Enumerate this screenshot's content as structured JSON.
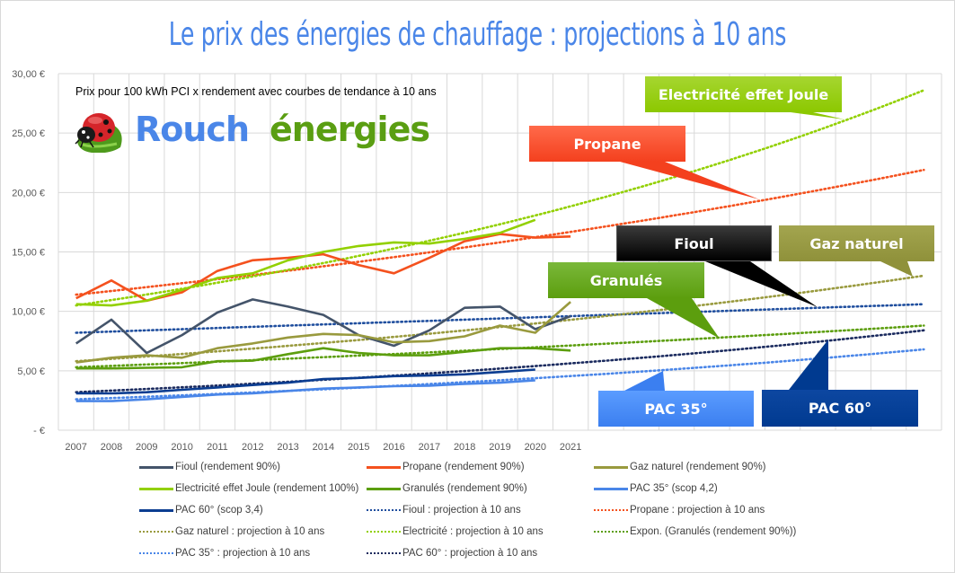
{
  "title": "Le prix des énergies de chauffage : projections à 10 ans",
  "subtitle": "Prix pour 100 kWh PCI x rendement avec courbes de tendance à 10 ans",
  "logo": {
    "word1": "Rouch",
    "word2": "énergies",
    "icon": "ladybug-icon"
  },
  "callouts": {
    "electricite": "Electricité effet Joule",
    "propane": "Propane",
    "fioul": "Fioul",
    "gaz": "Gaz naturel",
    "granules": "Granulés",
    "pac35": "PAC 35°",
    "pac60": "PAC 60°"
  },
  "chart_data": {
    "type": "line",
    "title": "Le prix des énergies de chauffage : projections à 10 ans",
    "subtitle": "Prix pour 100 kWh PCI x rendement avec courbes de tendance à 10 ans",
    "xlabel": "",
    "ylabel": "",
    "ylim": [
      0,
      30
    ],
    "y_ticks": [
      "-   €",
      "5,00 €",
      "10,00 €",
      "15,00 €",
      "20,00 €",
      "25,00 €",
      "30,00 €"
    ],
    "y_tick_values": [
      0,
      5,
      10,
      15,
      20,
      25,
      30
    ],
    "categories": [
      "2007",
      "2008",
      "2009",
      "2010",
      "2011",
      "2012",
      "2013",
      "2014",
      "2015",
      "2016",
      "2017",
      "2018",
      "2019",
      "2020",
      "2021"
    ],
    "x_extent_years": [
      2007,
      2031
    ],
    "grid": true,
    "legend_position": "bottom",
    "series": [
      {
        "name": "Fioul (rendement 90%)",
        "color": "#44546a",
        "style": "solid",
        "values": [
          7.3,
          9.3,
          6.5,
          8.0,
          9.9,
          11.0,
          10.4,
          9.7,
          8.0,
          7.1,
          8.4,
          10.3,
          10.4,
          8.5,
          9.6
        ]
      },
      {
        "name": "Propane (rendement 90%)",
        "color": "#f4511e",
        "style": "solid",
        "values": [
          11.1,
          12.6,
          10.9,
          11.6,
          13.4,
          14.3,
          14.5,
          14.8,
          13.9,
          13.2,
          14.5,
          15.9,
          16.5,
          16.2,
          16.3
        ]
      },
      {
        "name": "Gaz naturel (rendement 90%)",
        "color": "#999a3e",
        "style": "solid",
        "values": [
          5.7,
          6.1,
          6.3,
          6.1,
          6.9,
          7.3,
          7.8,
          8.1,
          8.0,
          7.4,
          7.5,
          7.9,
          8.8,
          8.2,
          10.8
        ]
      },
      {
        "name": "Electricité effet Joule (rendement 100%)",
        "color": "#92d000",
        "style": "solid",
        "values": [
          10.6,
          10.5,
          10.9,
          11.8,
          12.8,
          13.2,
          14.3,
          15.0,
          15.5,
          15.8,
          15.7,
          16.1,
          16.6,
          17.7,
          null
        ]
      },
      {
        "name": "Granulés (rendement 90%)",
        "color": "#5c9e0e",
        "style": "solid",
        "values": [
          5.2,
          5.2,
          5.25,
          5.3,
          5.8,
          5.85,
          6.4,
          6.9,
          6.5,
          6.3,
          6.3,
          6.6,
          6.9,
          6.9,
          6.7
        ]
      },
      {
        "name": "PAC 35° (scop 4,2)",
        "color": "#4a86e8",
        "style": "solid",
        "values": [
          2.45,
          2.45,
          2.6,
          2.8,
          3.0,
          3.1,
          3.3,
          3.5,
          3.6,
          3.7,
          3.75,
          3.9,
          4.0,
          4.2,
          null
        ]
      },
      {
        "name": "PAC 60° (scop 3,4)",
        "color": "#0b3d91",
        "style": "solid",
        "values": [
          3.1,
          3.1,
          3.2,
          3.4,
          3.6,
          3.8,
          4.0,
          4.3,
          4.4,
          4.55,
          4.6,
          4.7,
          4.9,
          5.1,
          null
        ]
      },
      {
        "name": "Fioul  : projection à 10 ans",
        "color": "#1f4e9e",
        "style": "dotted",
        "trend": "linear",
        "start": [
          2007,
          8.2
        ],
        "end": [
          2031,
          10.6
        ]
      },
      {
        "name": "Propane  : projection à 10 ans",
        "color": "#f4511e",
        "style": "dotted",
        "trend": "exponential",
        "start": [
          2007,
          11.4
        ],
        "end": [
          2031,
          21.9
        ]
      },
      {
        "name": "Gaz naturel  : projection à 10 ans",
        "color": "#999a3e",
        "style": "dotted",
        "trend": "exponential",
        "start": [
          2007,
          5.8
        ],
        "end": [
          2031,
          13.0
        ]
      },
      {
        "name": "Electricité  : projection à 10 ans",
        "color": "#92d000",
        "style": "dotted",
        "trend": "exponential",
        "start": [
          2007,
          10.5
        ],
        "end": [
          2031,
          28.6
        ]
      },
      {
        "name": "Expon. (Granulés (rendement 90%))",
        "color": "#5c9e0e",
        "style": "dotted",
        "trend": "exponential",
        "start": [
          2007,
          5.3
        ],
        "end": [
          2031,
          8.8
        ]
      },
      {
        "name": "PAC 35° : projection à 10 ans",
        "color": "#4a86e8",
        "style": "dotted",
        "trend": "exponential",
        "start": [
          2007,
          2.6
        ],
        "end": [
          2031,
          6.8
        ]
      },
      {
        "name": "PAC 60° : projection à 10 ans",
        "color": "#1a2a5e",
        "style": "dotted",
        "trend": "exponential",
        "start": [
          2007,
          3.2
        ],
        "end": [
          2031,
          8.4
        ]
      }
    ],
    "legend_order": [
      0,
      1,
      2,
      3,
      4,
      5,
      6,
      7,
      8,
      9,
      10,
      11,
      12,
      13
    ]
  }
}
